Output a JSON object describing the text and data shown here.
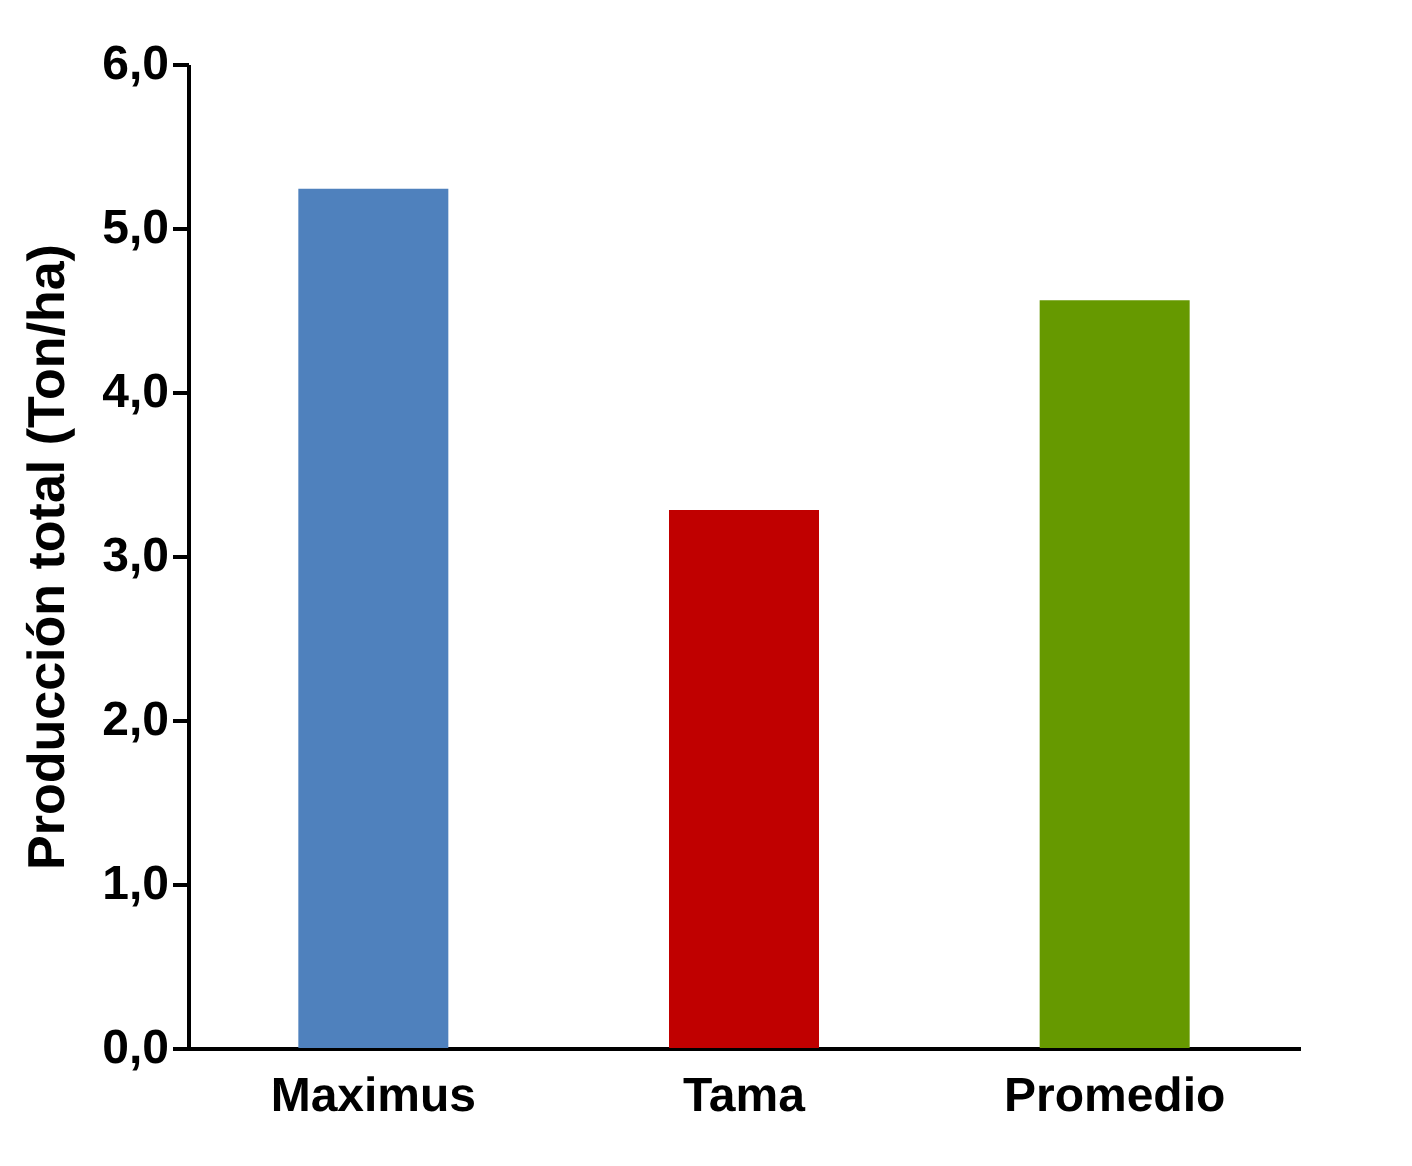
{
  "chart_data": {
    "type": "bar",
    "ylabel": "Producción total (Ton/ha)",
    "categories": [
      "Maximus",
      "Tama",
      "Promedio"
    ],
    "values": [
      5.24,
      3.28,
      4.56
    ],
    "colors": [
      "#4f81bd",
      "#c00000",
      "#669900"
    ],
    "ylim": [
      0,
      6
    ],
    "yticks": [
      {
        "value": 0,
        "label": "0,0"
      },
      {
        "value": 1,
        "label": "1,0"
      },
      {
        "value": 2,
        "label": "2,0"
      },
      {
        "value": 3,
        "label": "3,0"
      },
      {
        "value": 4,
        "label": "4,0"
      },
      {
        "value": 5,
        "label": "5,0"
      },
      {
        "value": 6,
        "label": "6,0"
      }
    ],
    "data_labels": false
  }
}
